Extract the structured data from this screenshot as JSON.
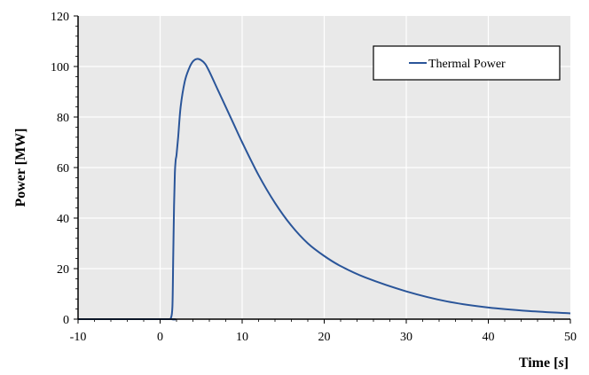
{
  "chart_data": {
    "type": "line",
    "title": "",
    "xlabel": "Time [s]",
    "xlabel_parts": [
      "Time [",
      "s",
      "]"
    ],
    "ylabel": "Power [MW]",
    "xlim": [
      -10,
      50
    ],
    "ylim": [
      0,
      120
    ],
    "x_ticks": [
      -10,
      0,
      10,
      20,
      30,
      40,
      50
    ],
    "y_ticks": [
      0,
      20,
      40,
      60,
      80,
      100,
      120
    ],
    "grid": true,
    "legend_position": "top-right",
    "colors": {
      "line": "#2a5599",
      "plot_background": "#e9e9e9",
      "grid": "#ffffff"
    },
    "series": [
      {
        "name": "Thermal Power",
        "x": [
          -10,
          1.0,
          1.3,
          1.5,
          1.6,
          1.7,
          1.8,
          1.9,
          2.0,
          2.2,
          2.5,
          3.0,
          3.5,
          4.0,
          4.5,
          5.0,
          5.5,
          6.0,
          7.0,
          8.0,
          9.0,
          10.0,
          12.0,
          14.0,
          16.0,
          18.0,
          20.0,
          22.0,
          25.0,
          30.0,
          35.0,
          40.0,
          45.0,
          50.0
        ],
        "y": [
          0,
          0,
          0.3,
          5,
          25,
          45,
          58,
          63,
          65,
          72,
          84,
          94,
          99,
          102,
          103,
          102.5,
          101,
          98,
          91,
          84,
          77,
          70,
          57,
          46,
          37,
          30,
          25,
          21,
          16.5,
          11,
          7,
          4.6,
          3.2,
          2.3
        ]
      }
    ]
  }
}
